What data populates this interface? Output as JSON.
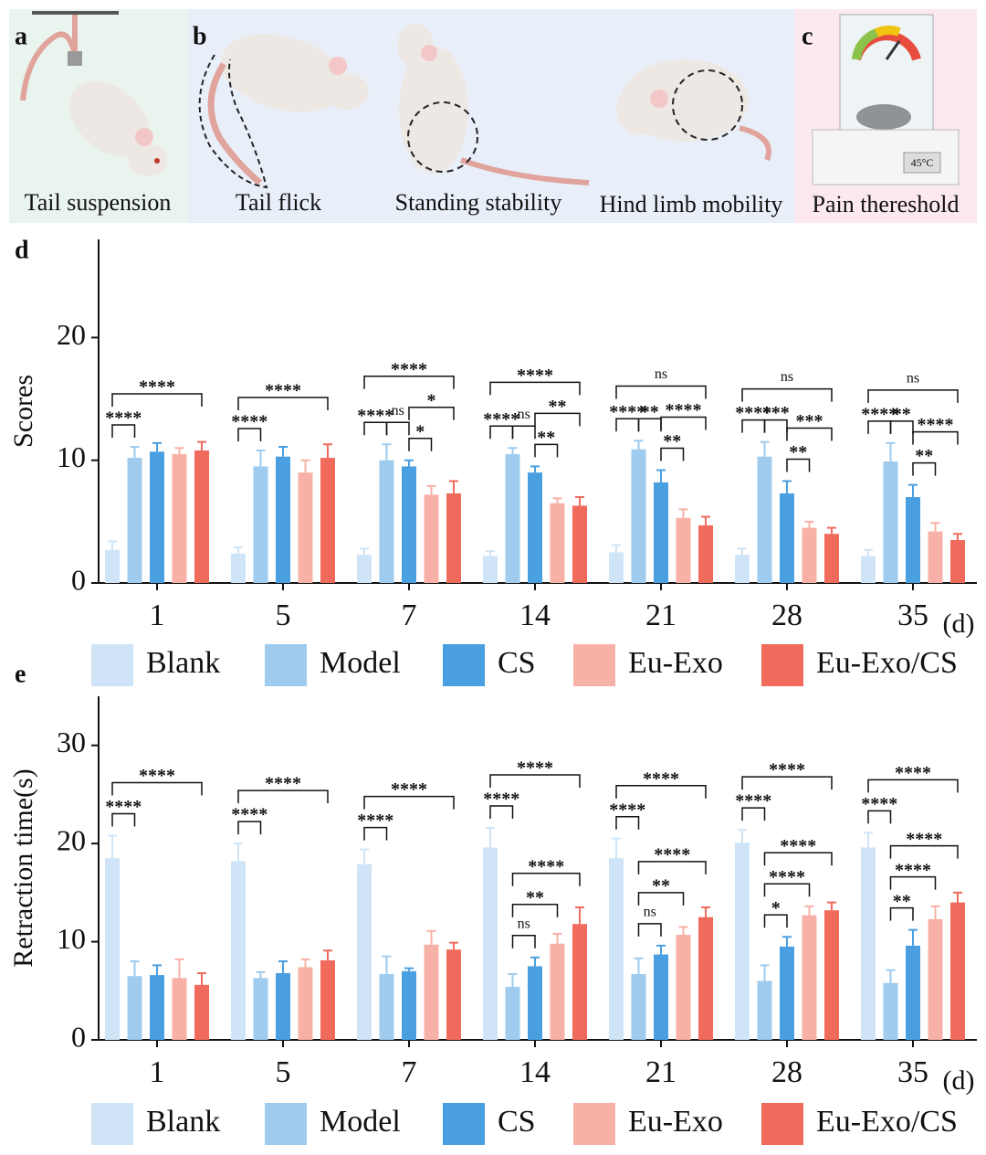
{
  "panels": [
    {
      "letter": "a",
      "captions": [
        "Tail suspension"
      ]
    },
    {
      "letter": "b",
      "captions": [
        "Tail flick",
        "Standing stability",
        "Hind limb mobility"
      ]
    },
    {
      "letter": "c",
      "captions": [
        "Pain thereshold"
      ],
      "display": "45°C"
    }
  ],
  "chart_data": [
    {
      "type": "bar",
      "panel": "d",
      "y_label": "Scores",
      "x_unit": "(d)",
      "categories": [
        "1",
        "5",
        "7",
        "14",
        "21",
        "28",
        "35"
      ],
      "ylim": [
        0,
        28
      ],
      "yticks": [
        0,
        10,
        20
      ],
      "series": [
        {
          "name": "Blank",
          "color": "#cfe5f7",
          "values": [
            2.7,
            2.4,
            2.3,
            2.2,
            2.5,
            2.3,
            2.2
          ],
          "errors": [
            0.7,
            0.5,
            0.5,
            0.4,
            0.6,
            0.5,
            0.5
          ]
        },
        {
          "name": "Model",
          "color": "#9ecbee",
          "values": [
            10.2,
            9.5,
            10.0,
            10.5,
            10.9,
            10.3,
            9.9
          ],
          "errors": [
            0.9,
            1.3,
            1.3,
            0.5,
            0.7,
            1.2,
            1.5
          ]
        },
        {
          "name": "CS",
          "color": "#4a9fe0",
          "values": [
            10.7,
            10.3,
            9.5,
            9.0,
            8.2,
            7.3,
            7.0
          ],
          "errors": [
            0.7,
            0.8,
            0.5,
            0.5,
            1.0,
            1.0,
            1.0
          ]
        },
        {
          "name": "Eu-Exo",
          "color": "#f8b1a6",
          "values": [
            10.5,
            9.0,
            7.2,
            6.5,
            5.3,
            4.5,
            4.2
          ],
          "errors": [
            0.5,
            1.0,
            0.7,
            0.4,
            0.7,
            0.5,
            0.7
          ]
        },
        {
          "name": "Eu-Exo/CS",
          "color": "#f06b5c",
          "values": [
            10.8,
            10.2,
            7.3,
            6.3,
            4.7,
            4.0,
            3.5
          ],
          "errors": [
            0.7,
            1.1,
            1.0,
            0.7,
            0.7,
            0.5,
            0.5
          ]
        }
      ],
      "annotations": [
        {
          "category": "1",
          "pair": [
            "Blank",
            "Model"
          ],
          "label": "****"
        },
        {
          "category": "1",
          "pair": [
            "Blank",
            "Eu-Exo/CS"
          ],
          "label": "****"
        },
        {
          "category": "5",
          "pair": [
            "Blank",
            "Model"
          ],
          "label": "****"
        },
        {
          "category": "5",
          "pair": [
            "Blank",
            "Eu-Exo/CS"
          ],
          "label": "****"
        },
        {
          "category": "7",
          "pair": [
            "Blank",
            "Model"
          ],
          "label": "****"
        },
        {
          "category": "7",
          "pair": [
            "Model",
            "CS"
          ],
          "label": "ns"
        },
        {
          "category": "7",
          "pair": [
            "CS",
            "Eu-Exo"
          ],
          "label": "*"
        },
        {
          "category": "7",
          "pair": [
            "CS",
            "Eu-Exo/CS"
          ],
          "label": "*"
        },
        {
          "category": "7",
          "pair": [
            "Blank",
            "Eu-Exo/CS"
          ],
          "label": "****"
        },
        {
          "category": "14",
          "pair": [
            "Blank",
            "Model"
          ],
          "label": "****"
        },
        {
          "category": "14",
          "pair": [
            "Model",
            "CS"
          ],
          "label": "ns"
        },
        {
          "category": "14",
          "pair": [
            "CS",
            "Eu-Exo"
          ],
          "label": "**"
        },
        {
          "category": "14",
          "pair": [
            "CS",
            "Eu-Exo/CS"
          ],
          "label": "**"
        },
        {
          "category": "14",
          "pair": [
            "Blank",
            "Eu-Exo/CS"
          ],
          "label": "****"
        },
        {
          "category": "21",
          "pair": [
            "Blank",
            "Model"
          ],
          "label": "****"
        },
        {
          "category": "21",
          "pair": [
            "Model",
            "CS"
          ],
          "label": "**"
        },
        {
          "category": "21",
          "pair": [
            "CS",
            "Eu-Exo"
          ],
          "label": "**"
        },
        {
          "category": "21",
          "pair": [
            "CS",
            "Eu-Exo/CS"
          ],
          "label": "****"
        },
        {
          "category": "21",
          "pair": [
            "Blank",
            "Eu-Exo/CS"
          ],
          "label": "ns"
        },
        {
          "category": "28",
          "pair": [
            "Blank",
            "Model"
          ],
          "label": "****"
        },
        {
          "category": "28",
          "pair": [
            "Model",
            "CS"
          ],
          "label": "***"
        },
        {
          "category": "28",
          "pair": [
            "CS",
            "Eu-Exo"
          ],
          "label": "**"
        },
        {
          "category": "28",
          "pair": [
            "CS",
            "Eu-Exo/CS"
          ],
          "label": "***"
        },
        {
          "category": "28",
          "pair": [
            "Blank",
            "Eu-Exo/CS"
          ],
          "label": "ns"
        },
        {
          "category": "35",
          "pair": [
            "Blank",
            "Model"
          ],
          "label": "****"
        },
        {
          "category": "35",
          "pair": [
            "Model",
            "CS"
          ],
          "label": "**"
        },
        {
          "category": "35",
          "pair": [
            "CS",
            "Eu-Exo"
          ],
          "label": "**"
        },
        {
          "category": "35",
          "pair": [
            "CS",
            "Eu-Exo/CS"
          ],
          "label": "****"
        },
        {
          "category": "35",
          "pair": [
            "Blank",
            "Eu-Exo/CS"
          ],
          "label": "ns"
        }
      ]
    },
    {
      "type": "bar",
      "panel": "e",
      "y_label": "Retraction time(s)",
      "x_unit": "(d)",
      "categories": [
        "1",
        "5",
        "7",
        "14",
        "21",
        "28",
        "35"
      ],
      "ylim": [
        0,
        35
      ],
      "yticks": [
        0,
        10,
        20,
        30
      ],
      "series": [
        {
          "name": "Blank",
          "color": "#cfe5f7",
          "values": [
            18.5,
            18.2,
            17.9,
            19.6,
            18.5,
            20.1,
            19.6
          ],
          "errors": [
            2.3,
            1.8,
            1.5,
            2.0,
            2.0,
            1.3,
            1.5
          ]
        },
        {
          "name": "Model",
          "color": "#9ecbee",
          "values": [
            6.5,
            6.3,
            6.7,
            5.4,
            6.7,
            6.0,
            5.8
          ],
          "errors": [
            1.5,
            0.6,
            1.8,
            1.3,
            1.6,
            1.6,
            1.3
          ]
        },
        {
          "name": "CS",
          "color": "#4a9fe0",
          "values": [
            6.6,
            6.8,
            7.0,
            7.5,
            8.7,
            9.5,
            9.6
          ],
          "errors": [
            1.0,
            1.2,
            0.3,
            0.9,
            0.9,
            1.0,
            1.6
          ]
        },
        {
          "name": "Eu-Exo",
          "color": "#f8b1a6",
          "values": [
            6.3,
            7.4,
            9.7,
            9.8,
            10.7,
            12.7,
            12.3
          ],
          "errors": [
            1.9,
            0.8,
            1.4,
            1.0,
            0.8,
            0.9,
            1.3
          ]
        },
        {
          "name": "Eu-Exo/CS",
          "color": "#f06b5c",
          "values": [
            5.6,
            8.1,
            9.2,
            11.8,
            12.5,
            13.2,
            14.0
          ],
          "errors": [
            1.2,
            1.0,
            0.7,
            1.7,
            1.0,
            0.8,
            1.0
          ]
        }
      ],
      "annotations": [
        {
          "category": "1",
          "pair": [
            "Blank",
            "Model"
          ],
          "label": "****"
        },
        {
          "category": "1",
          "pair": [
            "Blank",
            "Eu-Exo/CS"
          ],
          "label": "****"
        },
        {
          "category": "5",
          "pair": [
            "Blank",
            "Model"
          ],
          "label": "****"
        },
        {
          "category": "5",
          "pair": [
            "Blank",
            "Eu-Exo/CS"
          ],
          "label": "****"
        },
        {
          "category": "7",
          "pair": [
            "Blank",
            "Model"
          ],
          "label": "****"
        },
        {
          "category": "7",
          "pair": [
            "Blank",
            "Eu-Exo/CS"
          ],
          "label": "****"
        },
        {
          "category": "14",
          "pair": [
            "Blank",
            "Model"
          ],
          "label": "****"
        },
        {
          "category": "14",
          "pair": [
            "Model",
            "CS"
          ],
          "label": "ns"
        },
        {
          "category": "14",
          "pair": [
            "Model",
            "Eu-Exo"
          ],
          "label": "**"
        },
        {
          "category": "14",
          "pair": [
            "Model",
            "Eu-Exo/CS"
          ],
          "label": "****"
        },
        {
          "category": "14",
          "pair": [
            "Blank",
            "Eu-Exo/CS"
          ],
          "label": "****"
        },
        {
          "category": "21",
          "pair": [
            "Blank",
            "Model"
          ],
          "label": "****"
        },
        {
          "category": "21",
          "pair": [
            "Model",
            "CS"
          ],
          "label": "ns"
        },
        {
          "category": "21",
          "pair": [
            "Model",
            "Eu-Exo"
          ],
          "label": "**"
        },
        {
          "category": "21",
          "pair": [
            "Model",
            "Eu-Exo/CS"
          ],
          "label": "****"
        },
        {
          "category": "21",
          "pair": [
            "Blank",
            "Eu-Exo/CS"
          ],
          "label": "****"
        },
        {
          "category": "28",
          "pair": [
            "Blank",
            "Model"
          ],
          "label": "****"
        },
        {
          "category": "28",
          "pair": [
            "Model",
            "CS"
          ],
          "label": "*"
        },
        {
          "category": "28",
          "pair": [
            "Model",
            "Eu-Exo"
          ],
          "label": "****"
        },
        {
          "category": "28",
          "pair": [
            "Model",
            "Eu-Exo/CS"
          ],
          "label": "****"
        },
        {
          "category": "28",
          "pair": [
            "Blank",
            "Eu-Exo/CS"
          ],
          "label": "****"
        },
        {
          "category": "35",
          "pair": [
            "Blank",
            "Model"
          ],
          "label": "****"
        },
        {
          "category": "35",
          "pair": [
            "Model",
            "CS"
          ],
          "label": "**"
        },
        {
          "category": "35",
          "pair": [
            "Model",
            "Eu-Exo"
          ],
          "label": "****"
        },
        {
          "category": "35",
          "pair": [
            "Model",
            "Eu-Exo/CS"
          ],
          "label": "****"
        },
        {
          "category": "35",
          "pair": [
            "Blank",
            "Eu-Exo/CS"
          ],
          "label": "****"
        }
      ]
    }
  ]
}
